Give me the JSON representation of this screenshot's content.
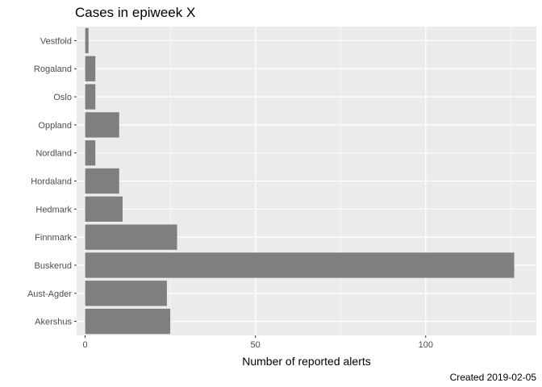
{
  "chart_data": {
    "type": "bar",
    "orientation": "horizontal",
    "title": "Cases in epiweek X",
    "xlabel": "Number of reported alerts",
    "ylabel": "",
    "caption": "Created 2019-02-05",
    "categories": [
      "Akershus",
      "Aust-Agder",
      "Buskerud",
      "Finnmark",
      "Hedmark",
      "Hordaland",
      "Nordland",
      "Oppland",
      "Oslo",
      "Rogaland",
      "Vestfold"
    ],
    "values": [
      25,
      24,
      126,
      27,
      11,
      10,
      3,
      10,
      3,
      3,
      1
    ],
    "xlim": [
      -2.5,
      132.5
    ],
    "xticks": [
      0,
      50,
      100
    ],
    "grid": true,
    "legend": "none",
    "colors": {
      "panel": "#ebebeb",
      "grid": "#ffffff",
      "bar": "#7f7f7f"
    }
  }
}
